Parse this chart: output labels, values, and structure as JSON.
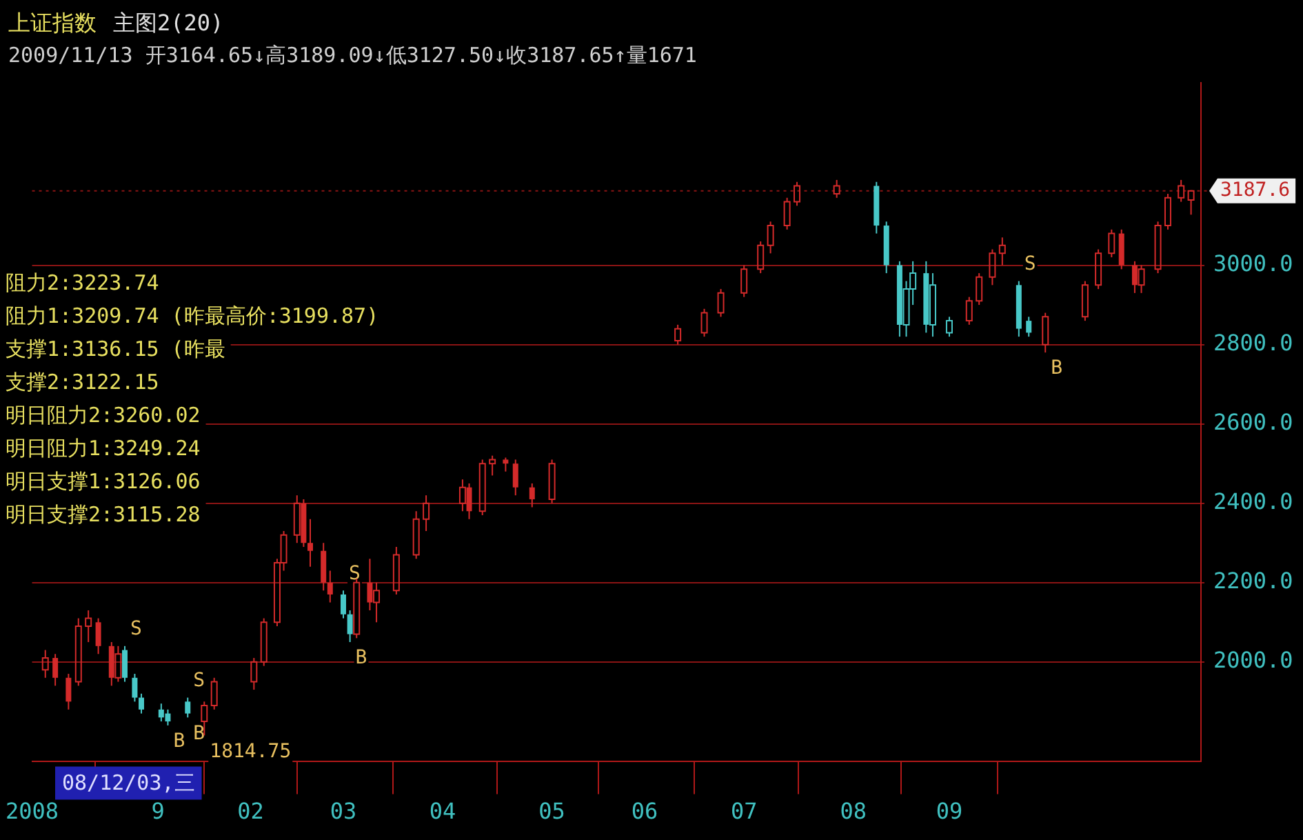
{
  "chart_data": {
    "type": "candlestick",
    "title": "上证指数",
    "subtitle": "主图2(20)",
    "series": [
      {
        "color": "#d42a2a",
        "x": [
          "2008-12-02",
          "2008-12-05",
          "2008-12-09",
          "2008-12-12",
          "2008-12-15",
          "2008-12-18",
          "2008-12-22",
          "2008-12-24",
          "2009-01-19",
          "2009-01-22",
          "2009-02-03",
          "2009-02-06",
          "2009-02-10",
          "2009-02-12",
          "2009-02-16",
          "2009-02-18",
          "2009-02-20",
          "2009-02-24",
          "2009-02-26",
          "2009-03-06",
          "2009-03-10",
          "2009-03-12",
          "2009-03-18",
          "2009-03-24",
          "2009-03-27",
          "2009-04-07",
          "2009-04-09",
          "2009-04-13",
          "2009-04-16",
          "2009-04-20",
          "2009-04-23",
          "2009-04-28",
          "2009-05-04",
          "2009-06-11",
          "2009-06-19",
          "2009-06-24",
          "2009-07-01",
          "2009-07-06",
          "2009-07-09",
          "2009-07-14",
          "2009-07-17",
          "2009-07-29",
          "2009-09-07",
          "2009-09-10",
          "2009-09-14",
          "2009-09-17",
          "2009-09-30",
          "2009-10-12",
          "2009-10-16",
          "2009-10-20",
          "2009-10-23",
          "2009-10-27",
          "2009-10-29",
          "2009-11-03",
          "2009-11-06",
          "2009-11-10",
          "2009-11-13"
        ],
        "ohlc": [
          [
            1980,
            2030,
            1960,
            2010
          ],
          [
            2010,
            2020,
            1940,
            1960
          ],
          [
            1960,
            1970,
            1880,
            1900
          ],
          [
            1950,
            2110,
            1940,
            2090
          ],
          [
            2090,
            2130,
            2050,
            2110
          ],
          [
            2100,
            2110,
            2020,
            2040
          ],
          [
            2040,
            2050,
            1940,
            1960
          ],
          [
            1960,
            2040,
            1950,
            2020
          ],
          [
            1850,
            1900,
            1814.75,
            1890
          ],
          [
            1890,
            1960,
            1880,
            1950
          ],
          [
            1950,
            2010,
            1930,
            2000
          ],
          [
            2000,
            2110,
            1990,
            2100
          ],
          [
            2100,
            2260,
            2090,
            2250
          ],
          [
            2250,
            2330,
            2230,
            2320
          ],
          [
            2320,
            2420,
            2300,
            2400
          ],
          [
            2400,
            2410,
            2290,
            2300
          ],
          [
            2300,
            2360,
            2240,
            2280
          ],
          [
            2280,
            2300,
            2180,
            2200
          ],
          [
            2200,
            2230,
            2150,
            2170
          ],
          [
            2070,
            2210,
            2060,
            2200
          ],
          [
            2200,
            2260,
            2130,
            2150
          ],
          [
            2150,
            2200,
            2100,
            2180
          ],
          [
            2180,
            2290,
            2170,
            2270
          ],
          [
            2270,
            2380,
            2260,
            2360
          ],
          [
            2360,
            2420,
            2330,
            2400
          ],
          [
            2400,
            2460,
            2380,
            2440
          ],
          [
            2440,
            2450,
            2360,
            2380
          ],
          [
            2380,
            2510,
            2370,
            2500
          ],
          [
            2500,
            2520,
            2470,
            2510
          ],
          [
            2510,
            2515,
            2480,
            2500
          ],
          [
            2500,
            2510,
            2420,
            2440
          ],
          [
            2440,
            2450,
            2390,
            2410
          ],
          [
            2410,
            2510,
            2400,
            2500
          ],
          [
            2810,
            2850,
            2800,
            2840
          ],
          [
            2830,
            2890,
            2820,
            2880
          ],
          [
            2880,
            2940,
            2870,
            2930
          ],
          [
            2930,
            3000,
            2920,
            2990
          ],
          [
            2990,
            3060,
            2980,
            3050
          ],
          [
            3050,
            3110,
            3030,
            3100
          ],
          [
            3100,
            3170,
            3090,
            3160
          ],
          [
            3160,
            3210,
            3150,
            3200
          ],
          [
            3180,
            3215,
            3170,
            3200
          ],
          [
            2860,
            2920,
            2850,
            2910
          ],
          [
            2910,
            2980,
            2900,
            2970
          ],
          [
            2970,
            3040,
            2950,
            3030
          ],
          [
            3030,
            3070,
            3000,
            3050
          ],
          [
            2800,
            2880,
            2780,
            2870
          ],
          [
            2870,
            2960,
            2860,
            2950
          ],
          [
            2950,
            3040,
            2940,
            3030
          ],
          [
            3030,
            3090,
            3020,
            3080
          ],
          [
            3080,
            3090,
            2990,
            3000
          ],
          [
            3000,
            3010,
            2930,
            2950
          ],
          [
            2950,
            3000,
            2930,
            2990
          ],
          [
            2990,
            3110,
            2980,
            3100
          ],
          [
            3100,
            3180,
            3090,
            3170
          ],
          [
            3170,
            3215,
            3160,
            3200
          ],
          [
            3164.65,
            3189.09,
            3127.5,
            3187.65
          ]
        ]
      },
      {
        "color": "#48c8c8",
        "x": [
          "2008-12-26",
          "2008-12-29",
          "2008-12-31",
          "2009-01-06",
          "2009-01-08",
          "2009-01-14",
          "2009-03-02",
          "2009-03-04",
          "2009-08-10",
          "2009-08-13",
          "2009-08-17",
          "2009-08-19",
          "2009-08-21",
          "2009-08-25",
          "2009-08-27",
          "2009-09-01",
          "2009-09-22",
          "2009-09-25"
        ],
        "ohlc": [
          [
            2030,
            2040,
            1950,
            1960
          ],
          [
            1960,
            1970,
            1900,
            1910
          ],
          [
            1910,
            1920,
            1870,
            1880
          ],
          [
            1880,
            1895,
            1850,
            1860
          ],
          [
            1870,
            1880,
            1840,
            1850
          ],
          [
            1900,
            1910,
            1860,
            1870
          ],
          [
            2170,
            2180,
            2110,
            2120
          ],
          [
            2120,
            2130,
            2050,
            2070
          ],
          [
            3200,
            3210,
            3080,
            3100
          ],
          [
            3100,
            3110,
            2980,
            3000
          ],
          [
            3000,
            3010,
            2820,
            2850
          ],
          [
            2850,
            2960,
            2820,
            2940
          ],
          [
            2940,
            3010,
            2900,
            2980
          ],
          [
            2980,
            3010,
            2830,
            2850
          ],
          [
            2850,
            2980,
            2820,
            2950
          ],
          [
            2830,
            2870,
            2820,
            2860
          ],
          [
            2950,
            2960,
            2820,
            2840
          ],
          [
            2860,
            2870,
            2820,
            2830
          ]
        ]
      }
    ],
    "xlim": [
      "2008-11-28",
      "2009-11-16"
    ],
    "xticks": [
      {
        "value": "2008-11-28",
        "label": "2008"
      },
      {
        "value": "2009-01-05",
        "label": "9"
      },
      {
        "value": "2009-02-02",
        "label": "02"
      },
      {
        "value": "2009-03-02",
        "label": "03"
      },
      {
        "value": "2009-04-01",
        "label": "04"
      },
      {
        "value": "2009-05-04",
        "label": "05"
      },
      {
        "value": "2009-06-01",
        "label": "06"
      },
      {
        "value": "2009-07-01",
        "label": "07"
      },
      {
        "value": "2009-08-03",
        "label": "08"
      },
      {
        "value": "2009-09-01",
        "label": "09"
      }
    ],
    "ylim": [
      1750,
      3460
    ],
    "yticks": [
      {
        "value": 2000,
        "label": "2000.0"
      },
      {
        "value": 2200,
        "label": "2200.0"
      },
      {
        "value": 2400,
        "label": "2400.0"
      },
      {
        "value": 2600,
        "label": "2600.0"
      },
      {
        "value": 2800,
        "label": "2800.0"
      },
      {
        "value": 3000,
        "label": "3000.0"
      }
    ],
    "grid": "y",
    "legend": false,
    "annotations": [
      "2009/11/13 开3164.65↓高3189.09↓低3127.50↓收3187.65↑量1671",
      "阻力2:3223.74",
      "阻力1:3209.74 (昨最高价:3199.87)",
      "支撑1:3136.15 (昨最",
      "支撑2:3122.15",
      "明日阻力2:3260.02",
      "明日阻力1:3249.24",
      "明日支撑1:3126.06",
      "明日支撑2:3115.28",
      "08/12/03,三",
      {
        "text": "S",
        "x": "2008-12-26",
        "y": 2040
      },
      {
        "text": "B",
        "x": "2009-01-08",
        "y": 1840
      },
      {
        "text": "S",
        "x": "2009-01-14",
        "y": 1910
      },
      {
        "text": "B",
        "x": "2009-01-14",
        "y": 1860
      },
      {
        "text": "1814.75",
        "x": "2009-01-19",
        "y": 1814.75
      },
      {
        "text": "S",
        "x": "2009-03-02",
        "y": 2180
      },
      {
        "text": "B",
        "x": "2009-03-04",
        "y": 2050
      },
      {
        "text": "S",
        "x": "2009-09-22",
        "y": 2960
      },
      {
        "text": "B",
        "x": "2009-09-30",
        "y": 2780
      }
    ],
    "ref_lines": [
      {
        "axis": "y",
        "value": 3187.65,
        "label": "3187.6",
        "color": "#8a1414",
        "line_style": "dotted"
      }
    ]
  }
}
